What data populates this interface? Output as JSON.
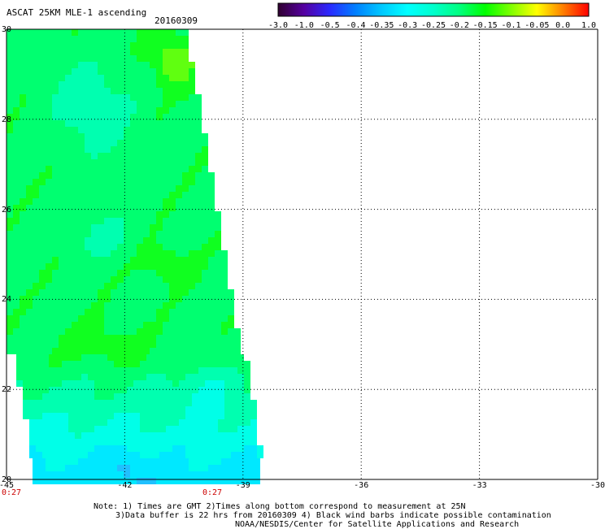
{
  "header": {
    "title": "ASCAT 25KM MLE-1 ascending",
    "date": "20160309"
  },
  "colorbar": {
    "labels": [
      "-3.0",
      "-1.0",
      "-0.5",
      "-0.4",
      "-0.35",
      "-0.3",
      "-0.25",
      "-0.2",
      "-0.15",
      "-0.1",
      "-0.05",
      "0.0",
      "1.0"
    ],
    "colors": [
      "#300030",
      "#5500a0",
      "#2a2aff",
      "#0080ff",
      "#00c8ff",
      "#00ffff",
      "#00ffcc",
      "#00ff80",
      "#00ff00",
      "#80ff00",
      "#ffff00",
      "#ff8000",
      "#ff0000"
    ]
  },
  "map": {
    "lat_labels": [
      "30",
      "28",
      "26",
      "24",
      "22",
      "20"
    ],
    "lon_labels": [
      "-45",
      "-42",
      "-39",
      "-36",
      "-33",
      "-30"
    ],
    "time_labels": [
      "0:27",
      "0:27"
    ]
  },
  "footer": {
    "note1": "Note: 1) Times are GMT 2)Times along bottom correspond to measurement at 25N",
    "note2": "3)Data buffer is 22 hrs from 20160309 4) Black wind barbs indicate possible contamination",
    "note3": "NOAA/NESDIS/Center for Satellite Applications and Research"
  }
}
